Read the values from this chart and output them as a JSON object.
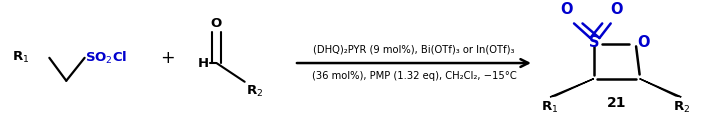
{
  "figsize": [
    7.08,
    1.18
  ],
  "dpi": 100,
  "bg_color": "#ffffff",
  "black": "#000000",
  "blue": "#0000cd",
  "reagent_line1": "(DHQ)₂PYR (9 mol%), Bi(OTf)₃ or In(OTf)₃",
  "reagent_line2": "(36 mol%), PMP (1.32 eq), CH₂Cl₂, −15°C",
  "compound_number": "21",
  "fontsize_main": 9.5,
  "fontsize_reagent": 7.2,
  "fontsize_number": 10,
  "fontsize_small": 8.5
}
